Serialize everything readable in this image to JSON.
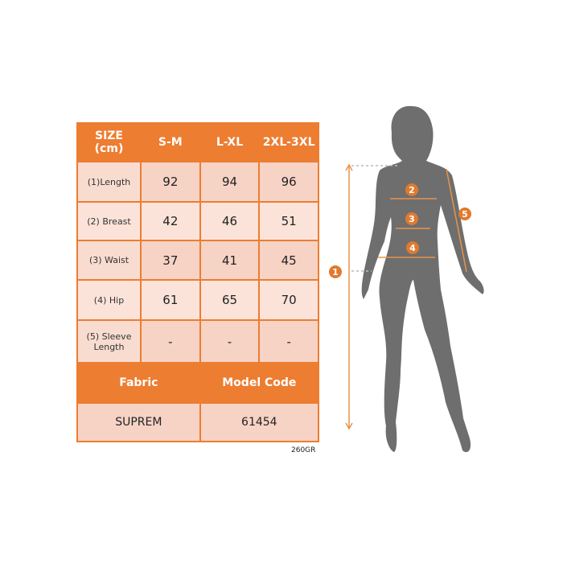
{
  "table": {
    "header": [
      "SIZE\n(cm)",
      "S-M",
      "L-XL",
      "2XL-3XL"
    ],
    "rows": [
      {
        "label": "(1)Length",
        "values": [
          "92",
          "94",
          "96"
        ]
      },
      {
        "label": "(2) Breast",
        "values": [
          "42",
          "46",
          "51"
        ]
      },
      {
        "label": "(3) Waist",
        "values": [
          "37",
          "41",
          "45"
        ]
      },
      {
        "label": "(4) Hip",
        "values": [
          "61",
          "65",
          "70"
        ]
      },
      {
        "label": "(5) Sleeve Length",
        "values": [
          "-",
          "-",
          "-"
        ]
      }
    ],
    "footer_header": [
      "Fabric",
      "Model Code"
    ],
    "footer_values": [
      "SUPREM",
      "61454"
    ]
  },
  "weight_label": "260GR",
  "markers": [
    "1",
    "2",
    "3",
    "4",
    "5"
  ],
  "colors": {
    "accent": "#ED7D31",
    "cell": "#F7D3C5",
    "silhouette": "#6E6E6E"
  }
}
